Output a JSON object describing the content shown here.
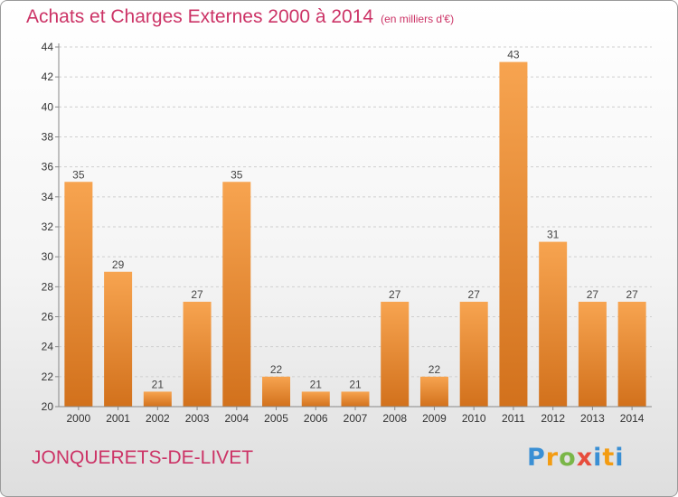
{
  "header": {
    "title": "Achats et Charges Externes 2000 à 2014",
    "subtitle": "(en milliers d'€)"
  },
  "footer": {
    "town": "JONQUERETS-DE-LIVET",
    "logo": "Proxiti"
  },
  "colors": {
    "title": "#cc3366",
    "bar_top": "#f7a450",
    "bar_bottom": "#d2711c"
  },
  "chart_data": {
    "type": "bar",
    "title": "Achats et Charges Externes 2000 à 2014",
    "subtitle": "(en milliers d'€)",
    "categories": [
      "2000",
      "2001",
      "2002",
      "2003",
      "2004",
      "2005",
      "2006",
      "2007",
      "2008",
      "2009",
      "2010",
      "2011",
      "2012",
      "2013",
      "2014"
    ],
    "values": [
      35,
      29,
      21,
      27,
      35,
      22,
      21,
      21,
      27,
      22,
      27,
      43,
      31,
      27,
      27
    ],
    "ylim": [
      20,
      44
    ],
    "yticks": [
      20,
      22,
      24,
      26,
      28,
      30,
      32,
      34,
      36,
      38,
      40,
      42,
      44
    ],
    "grid": "dashed horizontal",
    "legend": "none"
  }
}
